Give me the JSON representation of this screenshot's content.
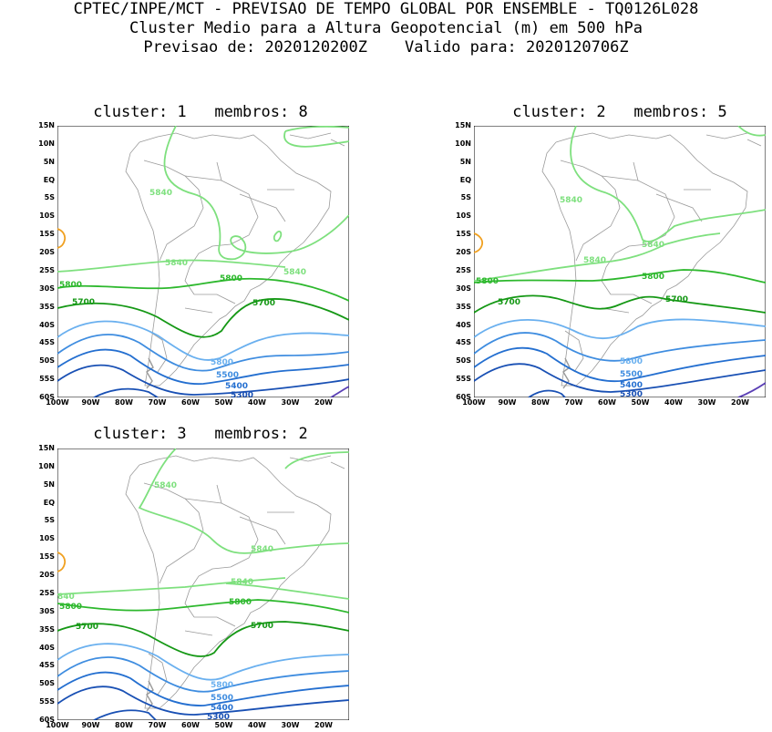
{
  "header": {
    "line1": "CPTEC/INPE/MCT - PREVISAO DE TEMPO GLOBAL POR ENSEMBLE - TQ0126L028",
    "line2": "Cluster Medio para a Altura Geopotencial (m) em 500 hPa",
    "line3": "Previsao de: 2020120200Z    Valido para: 2020120706Z"
  },
  "axes": {
    "lat_labels": [
      "15N",
      "10N",
      "5N",
      "EQ",
      "5S",
      "10S",
      "15S",
      "20S",
      "25S",
      "30S",
      "35S",
      "40S",
      "45S",
      "50S",
      "55S",
      "60S"
    ],
    "lon_labels": [
      "100W",
      "90W",
      "80W",
      "70W",
      "60W",
      "50W",
      "40W",
      "30W",
      "20W"
    ]
  },
  "colors": {
    "c5840": "#7ee07e",
    "c5800": "#2db82d",
    "c5700": "#159815",
    "c5600": "#6ab0ef",
    "c5500": "#3f8de0",
    "c5400": "#246fd0",
    "c5300": "#1950b4",
    "c5200": "#5a3fb5",
    "trop": "#f0a020",
    "coast": "#9a9a9a"
  },
  "panels": [
    {
      "title": "cluster: 1   membros: 8",
      "labels": {
        "l5840a": "5840",
        "l5840b": "5840",
        "l5840c": "5840",
        "l5800a": "5800",
        "l5800b": "5800",
        "l5700a": "5700",
        "l5700b": "5700",
        "l5800c": "5800",
        "l5500": "5500",
        "l5400": "5400",
        "l5300": "5300"
      }
    },
    {
      "title": "cluster: 2   membros: 5",
      "labels": {
        "l5840a": "5840",
        "l5840b": "5840",
        "l5840c": "5840",
        "l5800a": "5800",
        "l5800b": "5800",
        "l5700a": "5700",
        "l5700b": "5700",
        "l5800c": "5800",
        "l5500": "5500",
        "l5400": "5400",
        "l5300": "5300"
      }
    },
    {
      "title": "cluster: 3   membros: 2",
      "labels": {
        "l5840a": "5840",
        "l5840b": "5840",
        "l5840c": "5840",
        "l5840d": "840",
        "l5800a": "5800",
        "l5800b": "5800",
        "l5700a": "5700",
        "l5700b": "5700",
        "l5800c": "5800",
        "l5500": "5500",
        "l5400": "5400",
        "l5300": "5300"
      }
    }
  ]
}
